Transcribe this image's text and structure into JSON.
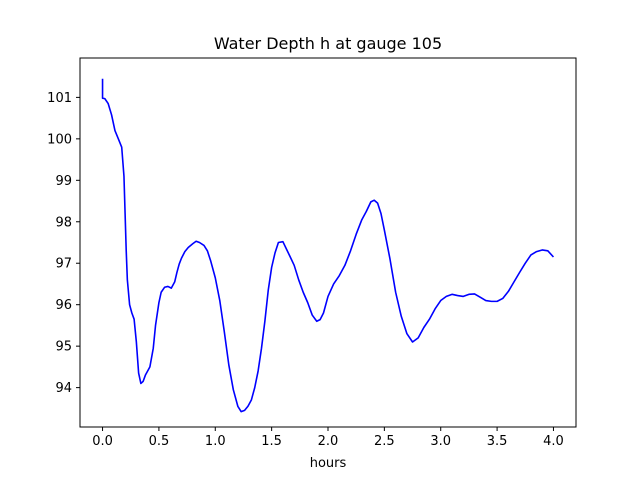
{
  "chart_data": {
    "type": "line",
    "title": "Water Depth h at gauge 105",
    "xlabel": "hours",
    "ylabel": "",
    "xlim": [
      -0.2,
      4.2
    ],
    "ylim": [
      93.05,
      101.95
    ],
    "xticks": [
      0.0,
      0.5,
      1.0,
      1.5,
      2.0,
      2.5,
      3.0,
      3.5,
      4.0
    ],
    "xtick_labels": [
      "0.0",
      "0.5",
      "1.0",
      "1.5",
      "2.0",
      "2.5",
      "3.0",
      "3.5",
      "4.0"
    ],
    "yticks": [
      94,
      95,
      96,
      97,
      98,
      99,
      100,
      101
    ],
    "ytick_labels": [
      "94",
      "95",
      "96",
      "97",
      "98",
      "99",
      "100",
      "101"
    ],
    "grid": false,
    "series": [
      {
        "color": "#0000ff",
        "x": [
          0.0,
          0.0,
          0.02,
          0.05,
          0.08,
          0.11,
          0.14,
          0.17,
          0.19,
          0.2,
          0.21,
          0.22,
          0.24,
          0.26,
          0.28,
          0.3,
          0.32,
          0.34,
          0.36,
          0.38,
          0.4,
          0.42,
          0.45,
          0.47,
          0.5,
          0.52,
          0.55,
          0.58,
          0.61,
          0.64,
          0.66,
          0.68,
          0.7,
          0.73,
          0.76,
          0.8,
          0.83,
          0.86,
          0.9,
          0.93,
          0.96,
          1.0,
          1.04,
          1.08,
          1.12,
          1.16,
          1.2,
          1.23,
          1.26,
          1.29,
          1.32,
          1.35,
          1.38,
          1.41,
          1.44,
          1.47,
          1.5,
          1.53,
          1.56,
          1.6,
          1.63,
          1.66,
          1.7,
          1.74,
          1.78,
          1.82,
          1.86,
          1.9,
          1.93,
          1.96,
          2.0,
          2.05,
          2.1,
          2.15,
          2.2,
          2.25,
          2.3,
          2.34,
          2.38,
          2.41,
          2.44,
          2.47,
          2.5,
          2.55,
          2.6,
          2.65,
          2.7,
          2.75,
          2.8,
          2.85,
          2.9,
          2.95,
          3.0,
          3.05,
          3.1,
          3.15,
          3.2,
          3.25,
          3.3,
          3.35,
          3.4,
          3.45,
          3.5,
          3.55,
          3.6,
          3.65,
          3.7,
          3.75,
          3.8,
          3.85,
          3.9,
          3.95,
          4.0
        ],
        "y": [
          101.45,
          100.98,
          100.97,
          100.85,
          100.58,
          100.2,
          100.0,
          99.8,
          99.1,
          98.2,
          97.3,
          96.6,
          96.0,
          95.8,
          95.65,
          95.1,
          94.35,
          94.1,
          94.15,
          94.3,
          94.4,
          94.5,
          94.95,
          95.5,
          96.05,
          96.3,
          96.42,
          96.44,
          96.4,
          96.55,
          96.78,
          96.98,
          97.12,
          97.28,
          97.38,
          97.47,
          97.53,
          97.5,
          97.43,
          97.3,
          97.05,
          96.65,
          96.1,
          95.35,
          94.55,
          93.95,
          93.55,
          93.42,
          93.45,
          93.55,
          93.7,
          94.0,
          94.4,
          94.95,
          95.6,
          96.35,
          96.9,
          97.25,
          97.5,
          97.52,
          97.35,
          97.18,
          96.95,
          96.6,
          96.3,
          96.05,
          95.75,
          95.6,
          95.64,
          95.8,
          96.2,
          96.5,
          96.7,
          96.95,
          97.3,
          97.7,
          98.05,
          98.25,
          98.48,
          98.52,
          98.45,
          98.2,
          97.8,
          97.1,
          96.3,
          95.72,
          95.3,
          95.1,
          95.2,
          95.45,
          95.65,
          95.9,
          96.1,
          96.2,
          96.25,
          96.22,
          96.2,
          96.25,
          96.26,
          96.18,
          96.1,
          96.08,
          96.08,
          96.15,
          96.32,
          96.55,
          96.78,
          97.0,
          97.2,
          97.28,
          97.32,
          97.3,
          97.15
        ]
      }
    ]
  }
}
